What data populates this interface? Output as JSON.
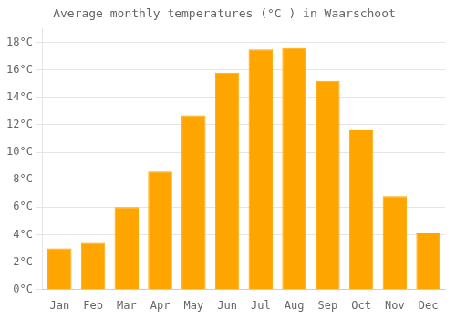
{
  "chart_data": {
    "type": "bar",
    "title": "Average monthly temperatures (°C ) in Waarschoot",
    "categories": [
      "Jan",
      "Feb",
      "Mar",
      "Apr",
      "May",
      "Jun",
      "Jul",
      "Aug",
      "Sep",
      "Oct",
      "Nov",
      "Dec"
    ],
    "values": [
      3.0,
      3.4,
      6.0,
      8.6,
      12.7,
      15.8,
      17.5,
      17.6,
      15.2,
      11.6,
      6.8,
      4.1
    ],
    "color": "#FFA500",
    "ylim": [
      0,
      19
    ],
    "yticks": [
      {
        "value": 0,
        "label": "0°C"
      },
      {
        "value": 2,
        "label": "2°C"
      },
      {
        "value": 4,
        "label": "4°C"
      },
      {
        "value": 6,
        "label": "6°C"
      },
      {
        "value": 8,
        "label": "8°C"
      },
      {
        "value": 10,
        "label": "10°C"
      },
      {
        "value": 12,
        "label": "12°C"
      },
      {
        "value": 14,
        "label": "14°C"
      },
      {
        "value": 16,
        "label": "16°C"
      },
      {
        "value": 18,
        "label": "18°C"
      }
    ],
    "grid": true
  }
}
